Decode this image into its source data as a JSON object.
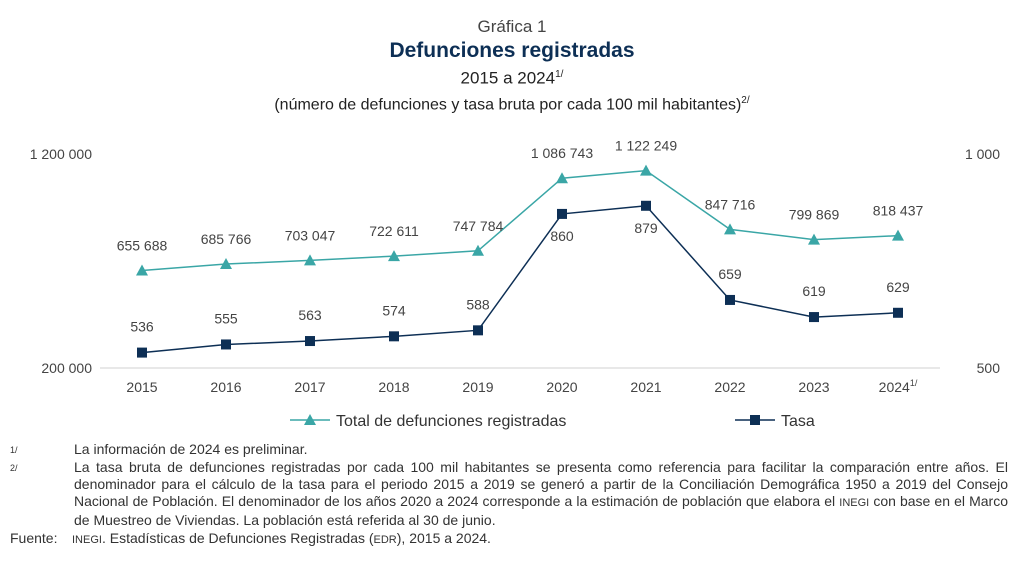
{
  "title": {
    "label": "Gráfica 1",
    "main": "Defunciones registradas",
    "period": "2015 a 2024",
    "period_note": "1/",
    "units": "(número de defunciones y tasa bruta por cada 100 mil habitantes)",
    "units_note": "2/"
  },
  "chart_data": {
    "type": "line",
    "categories": [
      "2015",
      "2016",
      "2017",
      "2018",
      "2019",
      "2020",
      "2021",
      "2022",
      "2023",
      "2024"
    ],
    "category_note": {
      "2024": "1/"
    },
    "series": [
      {
        "name": "Total de defunciones registradas",
        "axis": "left",
        "color": "#3aa6a6",
        "marker": "triangle",
        "values": [
          655688,
          685766,
          703047,
          722611,
          747784,
          1086743,
          1122249,
          847716,
          799869,
          818437
        ],
        "labels": [
          "655 688",
          "685 766",
          "703 047",
          "722 611",
          "747 784",
          "1 086 743",
          "1 122 249",
          "847 716",
          "799 869",
          "818 437"
        ]
      },
      {
        "name": "Tasa",
        "axis": "right",
        "color": "#0d2f55",
        "marker": "square",
        "values": [
          536,
          555,
          563,
          574,
          588,
          860,
          879,
          659,
          619,
          629
        ],
        "labels": [
          "536",
          "555",
          "563",
          "574",
          "588",
          "860",
          "879",
          "659",
          "619",
          "629"
        ]
      }
    ],
    "y_left": {
      "range": [
        200000,
        1200000
      ],
      "tick_labels": [
        "200 000",
        "1 200 000"
      ]
    },
    "y_right": {
      "range": [
        500,
        1000
      ],
      "tick_labels": [
        "500",
        "1 000"
      ]
    },
    "grid": false,
    "legend_position": "bottom"
  },
  "footnotes": [
    {
      "mark": "1/",
      "text": "La información de 2024 es preliminar."
    },
    {
      "mark": "2/",
      "text_before": "La tasa bruta de defunciones registradas por cada 100 mil habitantes se presenta como referencia para facilitar la comparación entre años. El denominador para el cálculo de la tasa para el periodo 2015 a 2019 se generó a partir de la Conciliación Demográfica 1950 a 2019 del Consejo Nacional de Población. El denominador de los años 2020 a 2024 corresponde a la estimación de población que elabora el",
      "org": "INEGI",
      "text_after": "con base en el Marco de Muestreo de Viviendas. La población está referida al 30 de junio."
    }
  ],
  "source": {
    "label": "Fuente:",
    "org": "INEGI",
    "text_before": ". Estadísticas de Defunciones Registradas (",
    "acronym": "EDR",
    "text_after": "), 2015 a 2024."
  }
}
